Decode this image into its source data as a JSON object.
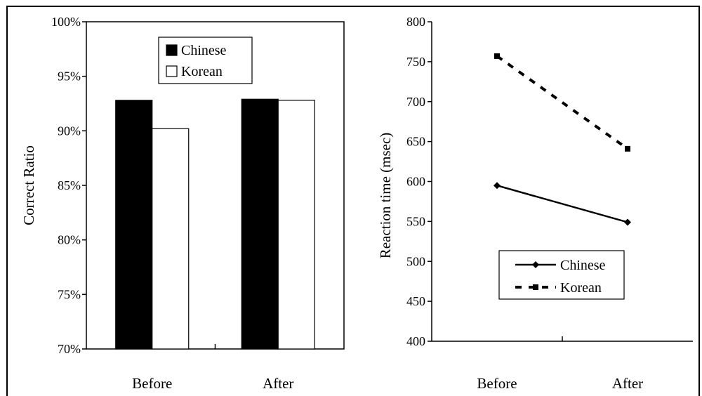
{
  "chart_data": [
    {
      "type": "bar",
      "title": "",
      "xlabel": "",
      "ylabel": "Correct Ratio",
      "ylim": [
        70,
        100
      ],
      "yticks": [
        "70%",
        "75%",
        "80%",
        "85%",
        "90%",
        "95%",
        "100%"
      ],
      "categories": [
        "Before",
        "After"
      ],
      "series": [
        {
          "name": "Chinese",
          "values": [
            92.8,
            92.9
          ],
          "color": "#000000"
        },
        {
          "name": "Korean",
          "values": [
            90.2,
            92.8
          ],
          "color": "#ffffff"
        }
      ],
      "legend_position": "top-center",
      "grid": false
    },
    {
      "type": "line",
      "title": "",
      "xlabel": "",
      "ylabel": "Reaction time (msec)",
      "ylim": [
        400,
        800
      ],
      "yticks": [
        "400",
        "450",
        "500",
        "550",
        "600",
        "650",
        "700",
        "750",
        "800"
      ],
      "categories": [
        "Before",
        "After"
      ],
      "series": [
        {
          "name": "Chinese",
          "values": [
            595,
            549
          ],
          "line_style": "solid",
          "marker": "diamond"
        },
        {
          "name": "Korean",
          "values": [
            757,
            641
          ],
          "line_style": "dashed",
          "marker": "square"
        }
      ],
      "legend_position": "bottom-center",
      "grid": false
    }
  ]
}
